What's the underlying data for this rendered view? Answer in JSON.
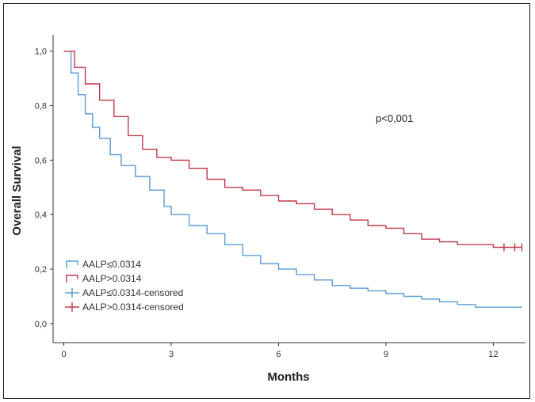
{
  "chart_data": {
    "type": "line",
    "subtype": "kaplan-meier",
    "xlabel": "Months",
    "ylabel": "Overall Survival",
    "xticks": [
      "0",
      "3",
      "6",
      "9",
      "12"
    ],
    "xtick_values": [
      0,
      3,
      6,
      9,
      12
    ],
    "yticks": [
      "0,0",
      "0,2",
      "0,4",
      "0,6",
      "0,8",
      "1,0"
    ],
    "ytick_values": [
      0,
      0.2,
      0.4,
      0.6,
      0.8,
      1.0
    ],
    "xlim": [
      -0.3,
      12.9
    ],
    "ylim": [
      -0.07,
      1.06
    ],
    "annotation": "p<0,001",
    "legend_position": "bottom-left",
    "grid": false,
    "series": [
      {
        "name": "AALP≤0.0314",
        "color": "#5b9bd5",
        "x": [
          0,
          0.2,
          0.4,
          0.6,
          0.8,
          1.0,
          1.3,
          1.6,
          2.0,
          2.4,
          2.8,
          3.0,
          3.5,
          4.0,
          4.5,
          5.0,
          5.5,
          6.0,
          6.5,
          7.0,
          7.5,
          8.0,
          8.5,
          9.0,
          9.5,
          10.0,
          10.5,
          11.0,
          11.5,
          12.0,
          12.8
        ],
        "y": [
          1.0,
          0.92,
          0.84,
          0.77,
          0.72,
          0.68,
          0.62,
          0.58,
          0.54,
          0.49,
          0.43,
          0.4,
          0.36,
          0.33,
          0.29,
          0.25,
          0.22,
          0.2,
          0.18,
          0.16,
          0.14,
          0.13,
          0.12,
          0.11,
          0.1,
          0.09,
          0.08,
          0.07,
          0.06,
          0.06,
          0.06
        ]
      },
      {
        "name": "AALP>0.0314",
        "color": "#c0394b",
        "x": [
          0,
          0.3,
          0.6,
          1.0,
          1.4,
          1.8,
          2.2,
          2.6,
          3.0,
          3.5,
          4.0,
          4.5,
          5.0,
          5.5,
          6.0,
          6.5,
          7.0,
          7.5,
          8.0,
          8.5,
          9.0,
          9.5,
          10.0,
          10.5,
          11.0,
          11.5,
          12.0,
          12.8
        ],
        "y": [
          1.0,
          0.94,
          0.88,
          0.82,
          0.76,
          0.69,
          0.64,
          0.61,
          0.6,
          0.57,
          0.53,
          0.5,
          0.49,
          0.47,
          0.45,
          0.44,
          0.42,
          0.4,
          0.38,
          0.36,
          0.35,
          0.33,
          0.31,
          0.3,
          0.29,
          0.29,
          0.28,
          0.28
        ]
      }
    ],
    "censored_marks": [
      {
        "series": "AALP>0.0314",
        "x": [
          12.3,
          12.6,
          12.8
        ],
        "y": [
          0.28,
          0.28,
          0.28
        ]
      }
    ],
    "legend": [
      {
        "label": "AALP≤0.0314",
        "kind": "step",
        "color": "#5b9bd5"
      },
      {
        "label": "AALP>0.0314",
        "kind": "step",
        "color": "#c0394b"
      },
      {
        "label": "AALP≤0.0314-censored",
        "kind": "cross",
        "color": "#5b9bd5"
      },
      {
        "label": "AALP>0.0314-censored",
        "kind": "cross",
        "color": "#c0394b"
      }
    ]
  }
}
